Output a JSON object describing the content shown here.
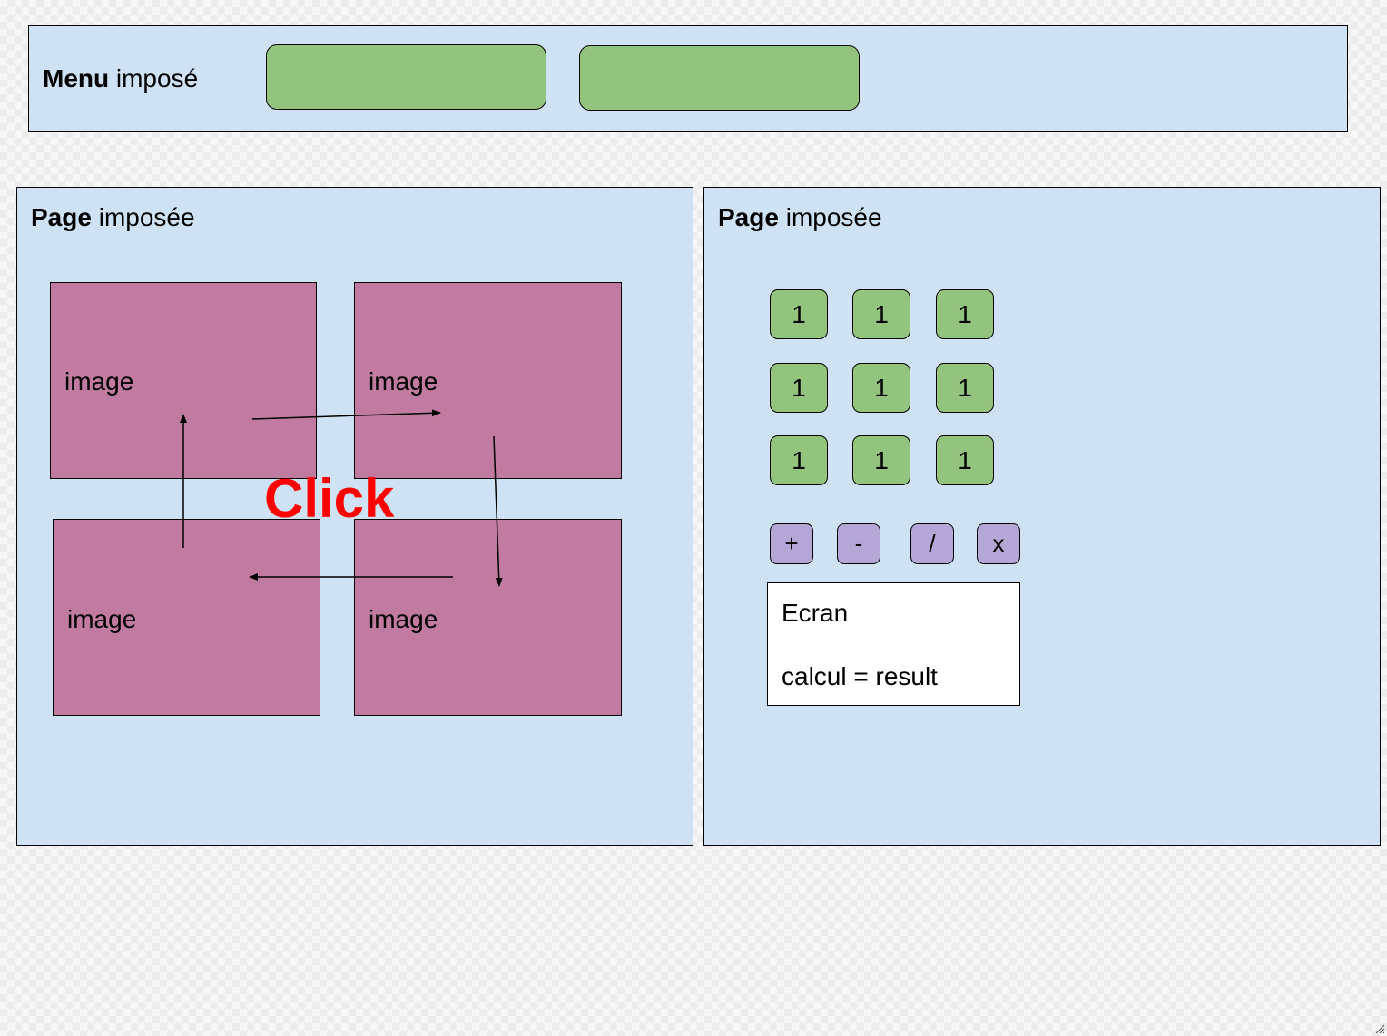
{
  "menu": {
    "title_bold": "Menu",
    "title_rest": " imposé",
    "buttons": [
      "",
      ""
    ]
  },
  "left_page": {
    "title_bold": "Page",
    "title_rest": " imposée",
    "images": [
      "image",
      "image",
      "image",
      "image"
    ],
    "click_label": "Click",
    "flow": "clockwise"
  },
  "right_page": {
    "title_bold": "Page",
    "title_rest": " imposée",
    "number_keys": [
      "1",
      "1",
      "1",
      "1",
      "1",
      "1",
      "1",
      "1",
      "1"
    ],
    "operator_keys": [
      "+",
      "-",
      "/",
      "x"
    ],
    "screen": {
      "title": "Ecran",
      "line": "calcul = result"
    }
  },
  "colors": {
    "panel": "#cfe2f3",
    "button_green": "#93c47d",
    "image_pink": "#c27ba0",
    "operator_purple": "#b4a7d6",
    "click_red": "#ff0000"
  }
}
